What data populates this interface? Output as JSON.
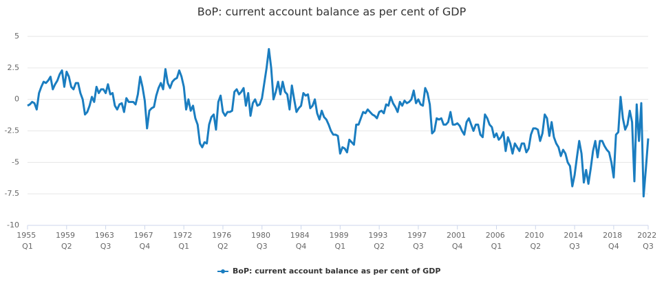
{
  "chart_data": {
    "type": "line",
    "title": "BoP: current account balance as per cent of GDP",
    "categories": [
      "1955 Q1",
      null,
      null,
      null,
      null,
      null,
      null,
      null,
      null,
      null,
      null,
      null,
      null,
      null,
      null,
      null,
      null,
      "1959 Q2",
      null,
      null,
      null,
      null,
      null,
      null,
      null,
      null,
      null,
      null,
      null,
      null,
      null,
      null,
      null,
      null,
      "1963 Q3",
      null,
      null,
      null,
      null,
      null,
      null,
      null,
      null,
      null,
      null,
      null,
      null,
      null,
      null,
      null,
      null,
      "1967 Q4",
      null,
      null,
      null,
      null,
      null,
      null,
      null,
      null,
      null,
      null,
      null,
      null,
      null,
      null,
      null,
      null,
      "1972 Q1",
      null,
      null,
      null,
      null,
      null,
      null,
      null,
      null,
      null,
      null,
      null,
      null,
      null,
      null,
      null,
      null,
      "1976 Q2",
      null,
      null,
      null,
      null,
      null,
      null,
      null,
      null,
      null,
      null,
      null,
      null,
      null,
      null,
      null,
      null,
      "1980 Q3",
      null,
      null,
      null,
      null,
      null,
      null,
      null,
      null,
      null,
      null,
      null,
      null,
      null,
      null,
      null,
      null,
      "1984 Q4",
      null,
      null,
      null,
      null,
      null,
      null,
      null,
      null,
      null,
      null,
      null,
      null,
      null,
      null,
      null,
      null,
      "1989 Q1",
      null,
      null,
      null,
      null,
      null,
      null,
      null,
      null,
      null,
      null,
      null,
      null,
      null,
      null,
      null,
      null,
      "1993 Q2",
      null,
      null,
      null,
      null,
      null,
      null,
      null,
      null,
      null,
      null,
      null,
      null,
      null,
      null,
      null,
      null,
      "1997 Q3",
      null,
      null,
      null,
      null,
      null,
      null,
      null,
      null,
      null,
      null,
      null,
      null,
      null,
      null,
      null,
      null,
      "2001 Q4",
      null,
      null,
      null,
      null,
      null,
      null,
      null,
      null,
      null,
      null,
      null,
      null,
      null,
      null,
      null,
      null,
      "2006 Q1",
      null,
      null,
      null,
      null,
      null,
      null,
      null,
      null,
      null,
      null,
      null,
      null,
      null,
      null,
      null,
      null,
      "2010 Q2",
      null,
      null,
      null,
      null,
      null,
      null,
      null,
      null,
      null,
      null,
      null,
      null,
      null,
      null,
      null,
      null,
      "2014 Q3",
      null,
      null,
      null,
      null,
      null,
      null,
      null,
      null,
      null,
      null,
      null,
      null,
      null,
      null,
      null,
      null,
      "2018 Q4",
      null,
      null,
      null,
      null,
      null,
      null,
      null,
      null,
      null,
      null,
      null,
      null,
      null,
      null,
      "2022 Q3"
    ],
    "series": [
      {
        "name": "BoP: current account balance as per cent of GDP",
        "color": "#1a7dc0",
        "values": [
          -0.5,
          -0.4,
          -0.2,
          -0.3,
          -0.8,
          0.5,
          1.0,
          1.4,
          1.3,
          1.5,
          1.8,
          0.8,
          1.2,
          1.5,
          2.0,
          2.3,
          1.0,
          2.2,
          1.8,
          1.0,
          0.8,
          1.3,
          1.3,
          0.5,
          0.0,
          -1.2,
          -1.0,
          -0.5,
          0.2,
          -0.2,
          1.0,
          0.5,
          0.8,
          0.8,
          0.5,
          1.2,
          0.4,
          0.5,
          -0.5,
          -0.8,
          -0.4,
          -0.3,
          -1.0,
          0.1,
          -0.2,
          -0.2,
          -0.2,
          -0.4,
          0.4,
          1.8,
          1.0,
          -0.1,
          -2.3,
          -0.9,
          -0.7,
          -0.6,
          0.3,
          0.9,
          1.3,
          0.8,
          2.4,
          1.3,
          0.9,
          1.4,
          1.6,
          1.7,
          2.3,
          1.8,
          1.0,
          -0.8,
          0.0,
          -0.9,
          -0.5,
          -1.5,
          -2.0,
          -3.5,
          -3.8,
          -3.4,
          -3.5,
          -2.0,
          -1.4,
          -1.2,
          -2.4,
          -0.2,
          0.3,
          -1.0,
          -1.3,
          -1.0,
          -1.0,
          -0.9,
          0.6,
          0.8,
          0.4,
          0.6,
          0.9,
          -0.5,
          0.5,
          -1.3,
          -0.3,
          0.0,
          -0.5,
          -0.4,
          0.1,
          1.3,
          2.5,
          4.0,
          2.5,
          0.0,
          0.6,
          1.4,
          0.4,
          1.4,
          0.6,
          0.4,
          -0.8,
          1.1,
          0.0,
          -1.0,
          -0.7,
          -0.5,
          0.5,
          0.3,
          0.4,
          -0.7,
          -0.5,
          0.0,
          -1.1,
          -1.6,
          -0.9,
          -1.4,
          -1.6,
          -2.0,
          -2.5,
          -2.8,
          -2.8,
          -2.9,
          -4.3,
          -3.8,
          -3.9,
          -4.2,
          -3.2,
          -3.4,
          -3.6,
          -2.0,
          -2.0,
          -1.5,
          -1.0,
          -1.1,
          -0.8,
          -1.0,
          -1.2,
          -1.3,
          -1.5,
          -1.0,
          -0.9,
          -1.1,
          -0.4,
          -0.5,
          0.2,
          -0.3,
          -0.6,
          -1.0,
          -0.2,
          -0.5,
          -0.1,
          -0.3,
          -0.2,
          0.0,
          0.7,
          -0.3,
          0.0,
          -0.4,
          -0.5,
          0.9,
          0.5,
          -0.4,
          -2.7,
          -2.5,
          -1.5,
          -1.6,
          -1.5,
          -2.0,
          -2.0,
          -1.8,
          -1.0,
          -2.0,
          -2.0,
          -1.9,
          -2.1,
          -2.5,
          -2.8,
          -1.8,
          -1.5,
          -2.0,
          -2.5,
          -2.0,
          -2.0,
          -2.8,
          -3.0,
          -1.2,
          -1.5,
          -2.0,
          -2.2,
          -3.0,
          -2.7,
          -3.2,
          -3.0,
          -2.6,
          -4.1,
          -3.0,
          -3.5,
          -4.3,
          -3.5,
          -3.8,
          -4.1,
          -3.5,
          -3.5,
          -4.2,
          -3.9,
          -2.8,
          -2.3,
          -2.3,
          -2.4,
          -3.3,
          -2.7,
          -1.2,
          -1.5,
          -2.9,
          -1.8,
          -3.0,
          -3.5,
          -3.8,
          -4.5,
          -4.0,
          -4.3,
          -5.0,
          -5.3,
          -6.9,
          -6.0,
          -4.6,
          -3.3,
          -4.3,
          -6.6,
          -5.6,
          -6.7,
          -5.5,
          -4.1,
          -3.3,
          -4.6,
          -3.3,
          -3.3,
          -3.7,
          -4.0,
          -4.2,
          -5.0,
          -6.2,
          -2.8,
          -2.6,
          0.2,
          -1.5,
          -2.4,
          -2.0,
          -0.9,
          -1.8,
          -6.5,
          -0.4,
          -3.3,
          -0.3,
          -7.7,
          -5.5,
          -3.1
        ]
      }
    ],
    "ylim": [
      -10,
      5
    ],
    "yticks": [
      5,
      2.5,
      0,
      -2.5,
      -5,
      -7.5,
      -10
    ],
    "grid": true
  }
}
